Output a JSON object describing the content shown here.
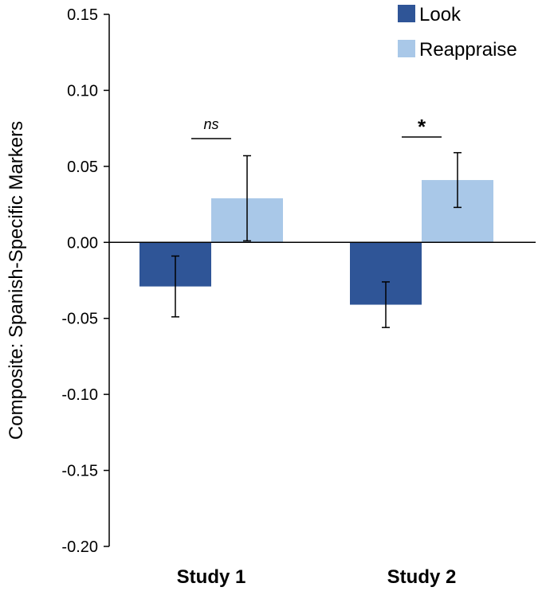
{
  "chart_data": {
    "type": "bar",
    "title": "",
    "xlabel": "",
    "ylabel": "Composite: Spanish-Specific Markers",
    "ylim": [
      -0.2,
      0.15
    ],
    "yticks": [
      "0.15",
      "0.10",
      "0.05",
      "0.00",
      "-0.05",
      "-0.10",
      "-0.15",
      "-0.20"
    ],
    "ytick_values": [
      0.15,
      0.1,
      0.05,
      0.0,
      -0.05,
      -0.1,
      -0.15,
      -0.2
    ],
    "categories": [
      "Study 1",
      "Study 2"
    ],
    "series": [
      {
        "name": "Look",
        "color": "#2f5597",
        "values": [
          -0.029,
          -0.041
        ],
        "errors": [
          0.02,
          0.015
        ]
      },
      {
        "name": "Reappraise",
        "color": "#a9c8e8",
        "values": [
          0.029,
          0.041
        ],
        "errors": [
          0.028,
          0.018
        ]
      }
    ],
    "annotations": [
      {
        "category": "Study 1",
        "label": "ns",
        "style": "italic"
      },
      {
        "category": "Study 2",
        "label": "*",
        "style": "bold"
      }
    ],
    "legend": {
      "position": "top-right",
      "entries": [
        "Look",
        "Reappraise"
      ]
    },
    "grid": false
  }
}
